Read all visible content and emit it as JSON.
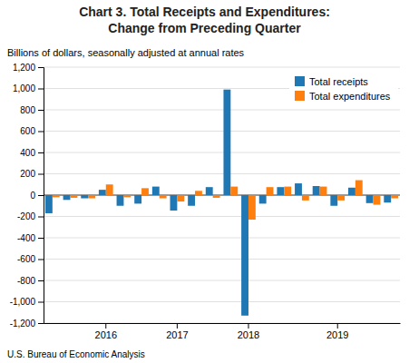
{
  "chart_data": {
    "type": "bar",
    "title": [
      "Chart 3. Total Receipts and Expenditures:",
      "Change from Preceding Quarter"
    ],
    "subtitle": "Billions of dollars, seasonally adjusted at annual rates",
    "footer": "U.S. Bureau of Economic Analysis",
    "categories": [
      null,
      null,
      null,
      "2016",
      null,
      null,
      null,
      "2017",
      null,
      null,
      null,
      "2018",
      null,
      null,
      null,
      null,
      "2019",
      null,
      null,
      null
    ],
    "series": [
      {
        "name": "Total receipts",
        "values": [
          -170,
          -45,
          -30,
          50,
          -100,
          -80,
          80,
          -145,
          -100,
          75,
          990,
          -1130,
          -80,
          75,
          110,
          85,
          -100,
          70,
          -75,
          -70
        ]
      },
      {
        "name": "Total expenditures",
        "values": [
          -20,
          -25,
          -30,
          100,
          -20,
          65,
          -30,
          -60,
          40,
          -25,
          80,
          -230,
          75,
          80,
          -50,
          80,
          -50,
          140,
          -90,
          -30
        ]
      }
    ],
    "ylim": [
      -1200,
      1200
    ],
    "yticks": [
      {
        "value": -1200,
        "label": "-1,200"
      },
      {
        "value": -1000,
        "label": "-1,000"
      },
      -800,
      -600,
      -400,
      -200,
      0,
      200,
      400,
      600,
      800,
      {
        "value": 1000,
        "label": "1,000"
      },
      {
        "value": 1200,
        "label": "1,200"
      }
    ],
    "grid": true,
    "legend": "upper right"
  }
}
